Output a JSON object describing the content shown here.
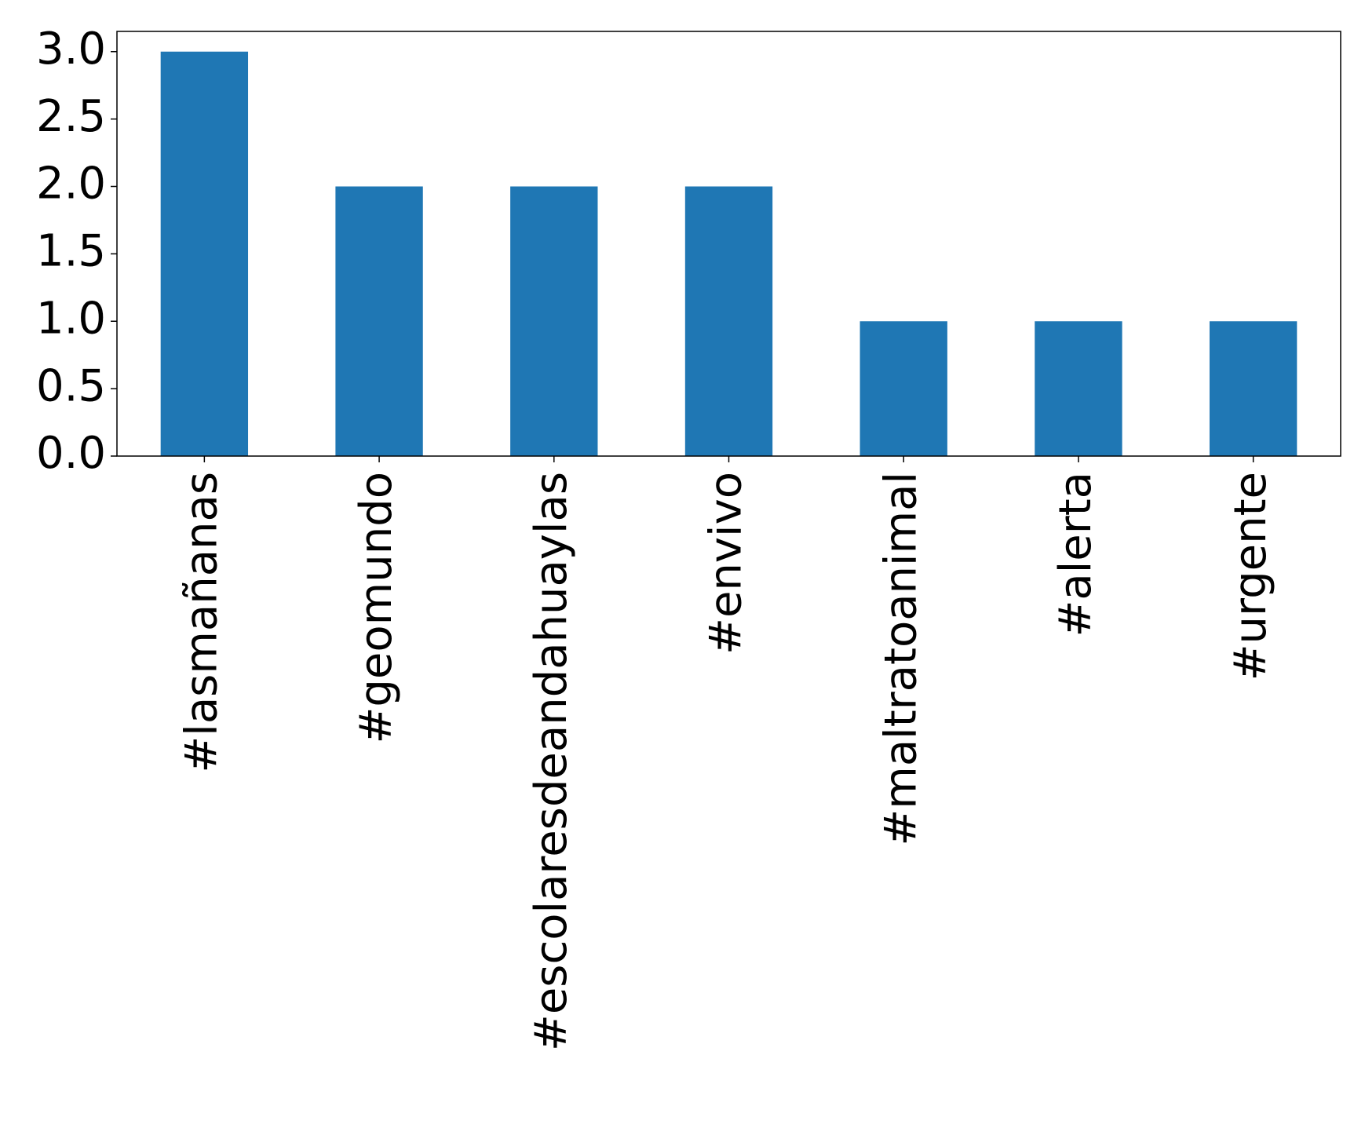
{
  "chart_data": {
    "type": "bar",
    "categories": [
      "#lasmañanas",
      "#geomundo",
      "#escolaresdeandahuaylas",
      "#envivo",
      "#maltratoanimal",
      "#alerta",
      "#urgente"
    ],
    "values": [
      3,
      2,
      2,
      2,
      1,
      1,
      1
    ],
    "color": "#1f77b4",
    "ylim": [
      0,
      3.15
    ],
    "yticks": [
      {
        "value": 0,
        "label": "0.0"
      },
      {
        "value": 0.5,
        "label": "0.5"
      },
      {
        "value": 1,
        "label": "1.0"
      },
      {
        "value": 1.5,
        "label": "1.5"
      },
      {
        "value": 2,
        "label": "2.0"
      },
      {
        "value": 2.5,
        "label": "2.5"
      },
      {
        "value": 3,
        "label": "3.0"
      }
    ],
    "grid": false
  }
}
